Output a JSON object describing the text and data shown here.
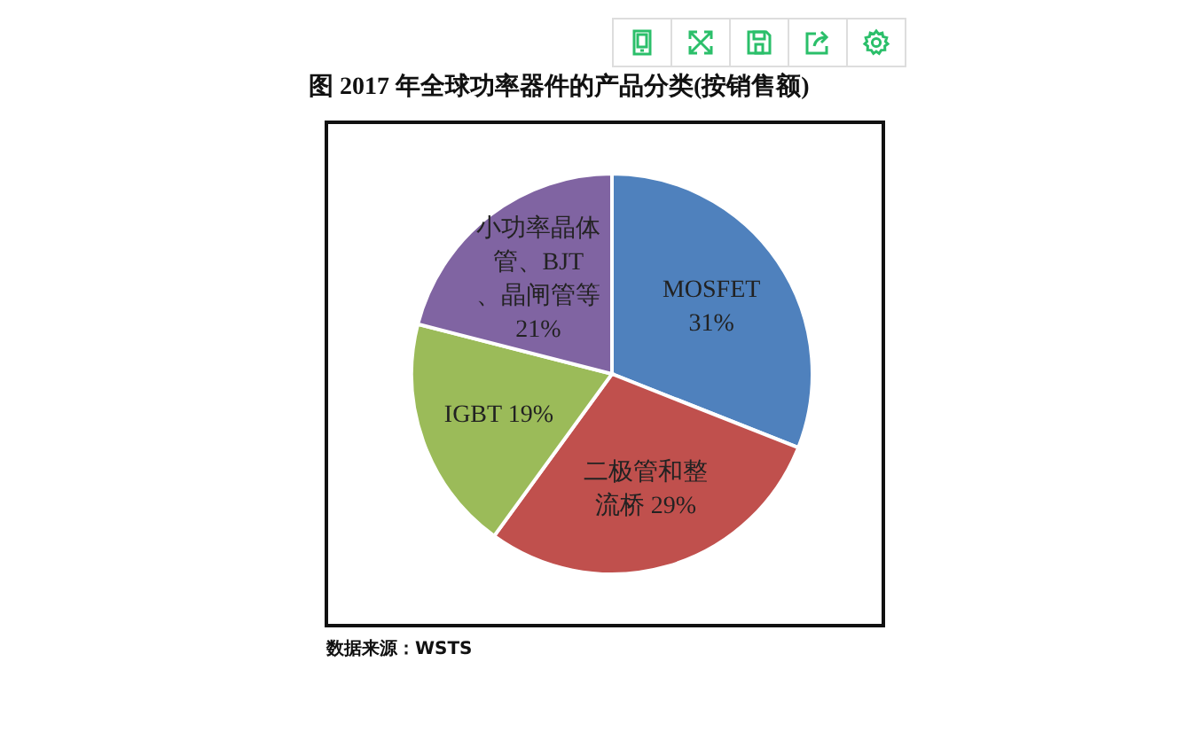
{
  "chart_data": {
    "type": "pie",
    "title": "图 2017 年全球功率器件的产品分类(按销售额)",
    "categories": [
      "MOSFET",
      "二极管和整流桥",
      "IGBT",
      "小功率晶体管、BJT、晶闸管等"
    ],
    "values": [
      31,
      29,
      19,
      21
    ],
    "value_labels": [
      "31%",
      "29%",
      "19%",
      "21%"
    ],
    "colors": [
      "#4f81bd",
      "#c0504d",
      "#9bbb59",
      "#8064a2"
    ],
    "annotations": [
      "数据来源：WSTS"
    ]
  }
}
